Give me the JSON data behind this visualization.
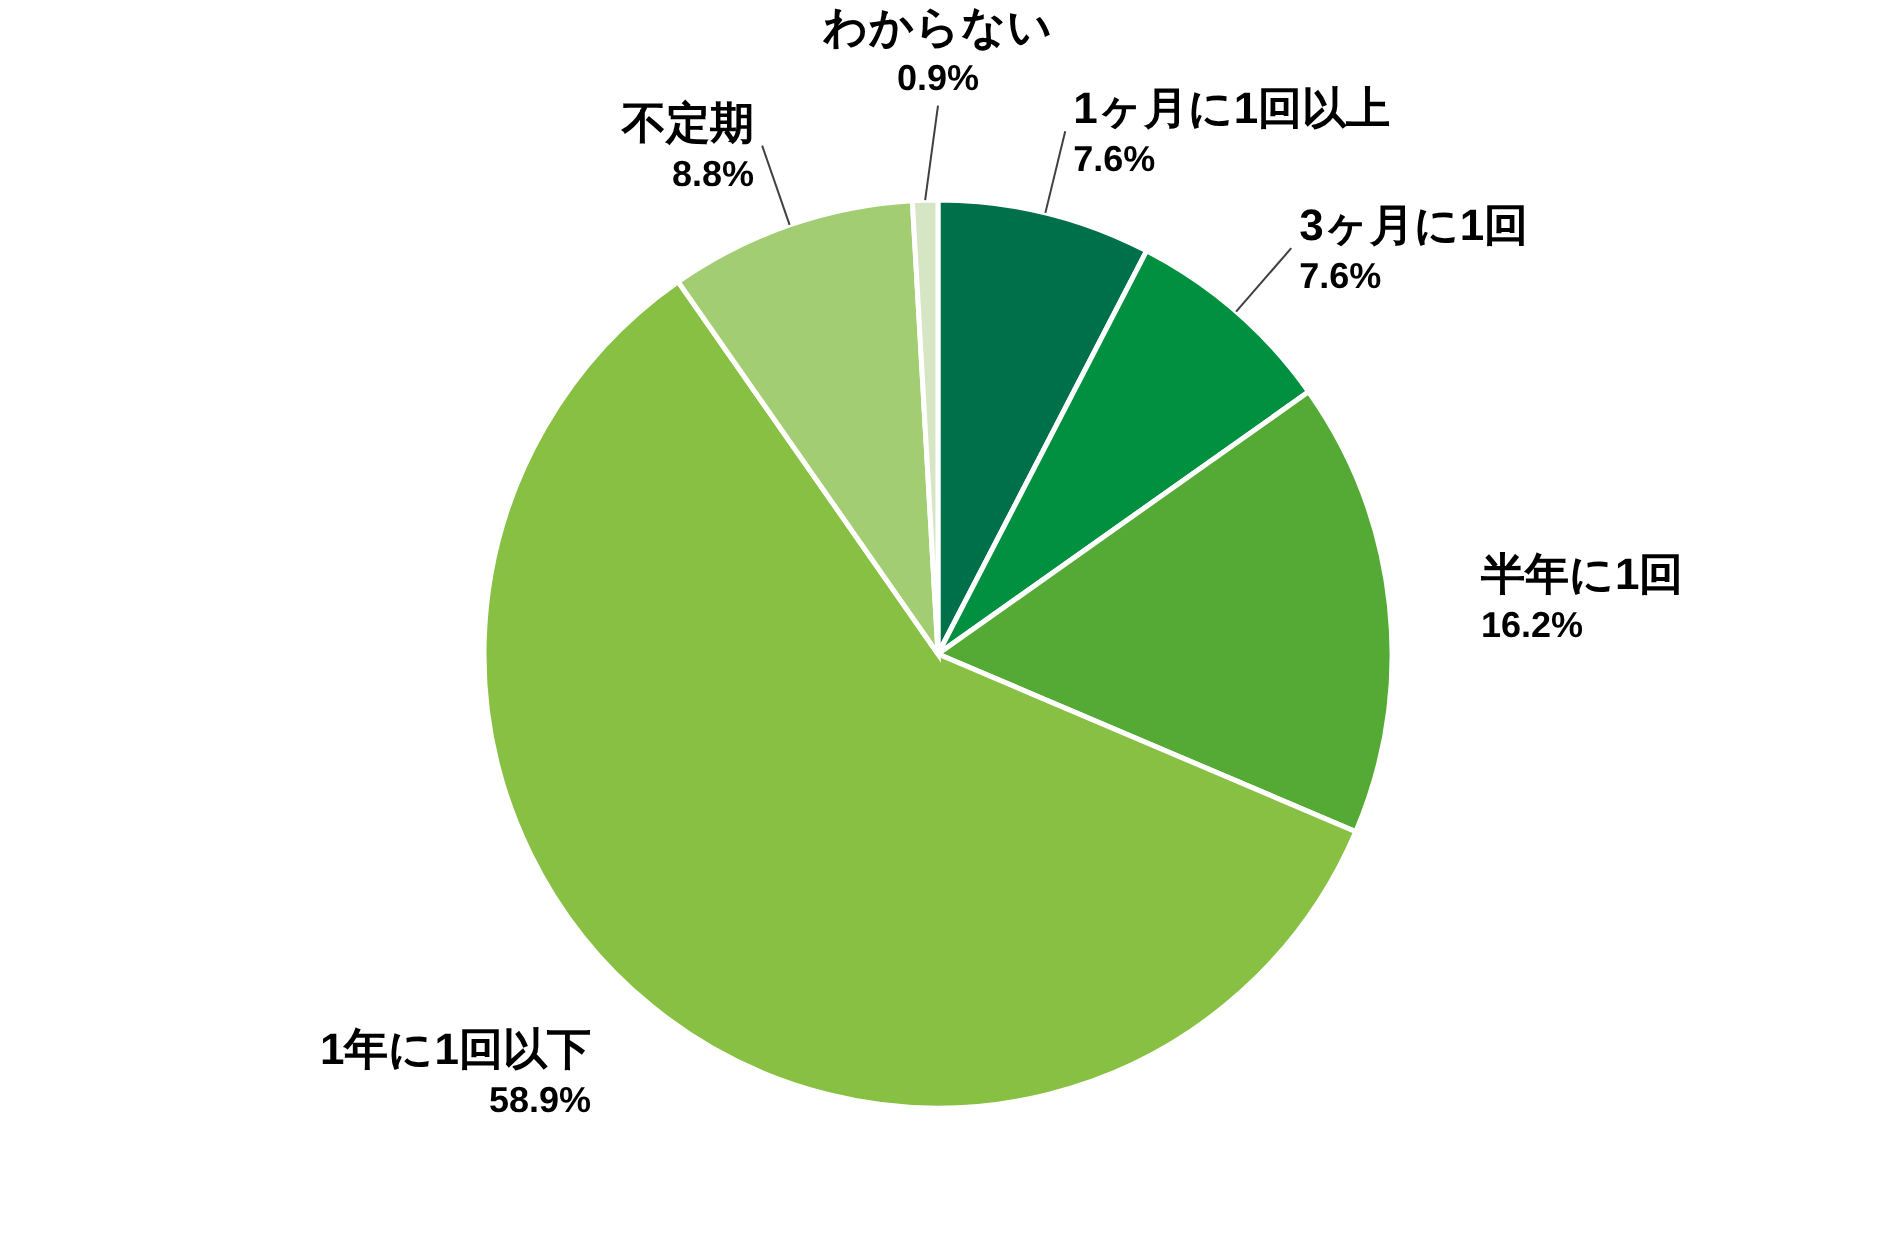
{
  "chart_data": {
    "type": "pie",
    "categories": [
      "1ヶ月に1回以上",
      "3ヶ月に1回",
      "半年に1回",
      "1年に1回以下",
      "不定期",
      "わからない"
    ],
    "values": [
      7.6,
      7.6,
      16.2,
      58.9,
      8.8,
      0.9
    ],
    "value_labels": [
      "7.6%",
      "7.6%",
      "16.2%",
      "58.9%",
      "8.8%",
      "0.9%"
    ],
    "colors": [
      "#00704a",
      "#009040",
      "#55aa35",
      "#88c044",
      "#a3cd72",
      "#d6e6c4"
    ]
  }
}
